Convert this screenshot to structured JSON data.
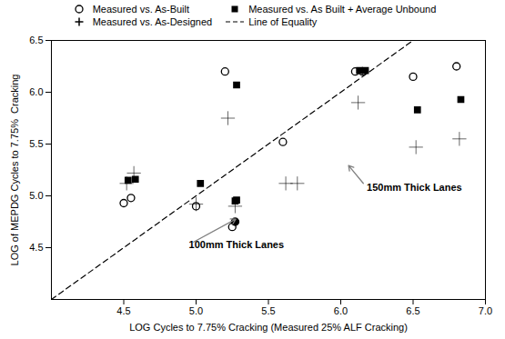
{
  "chart_data": {
    "type": "scatter",
    "xlabel": "LOG Cycles to 7.75% Cracking (Measured 25% ALF Cracking)",
    "ylabel": "LOG of MEPDG Cycles to 7.75%  Cracking",
    "xlim": [
      4.0,
      7.0
    ],
    "ylim": [
      4.0,
      6.5
    ],
    "xticks": [
      4.5,
      {
        "value": 5.0,
        "label": "5.0"
      },
      5.5,
      {
        "value": 6.0,
        "label": "6.0"
      },
      6.5,
      {
        "value": 7.0,
        "label": "7.0"
      }
    ],
    "yticks": [
      4.5,
      {
        "value": 5.0,
        "label": "5.0"
      },
      5.5,
      {
        "value": 6.0,
        "label": "6.0"
      },
      6.5
    ],
    "legend": "top",
    "series": [
      {
        "name": "Measured vs. As-Built",
        "type": "scatter",
        "marker": "open circle",
        "color": "#000000",
        "x": [
          4.5,
          4.55,
          5.0,
          5.2,
          5.25,
          5.6,
          6.1,
          6.15,
          6.5,
          6.8
        ],
        "values": [
          4.93,
          4.98,
          4.9,
          6.2,
          4.7,
          5.52,
          6.2,
          6.2,
          6.15,
          6.25
        ]
      },
      {
        "name": "Measured vs. As Built + Average Unbound",
        "type": "scatter",
        "marker": "filled square",
        "color": "#000000",
        "x": [
          4.53,
          4.58,
          5.03,
          5.28,
          5.28,
          5.27,
          6.13,
          6.17,
          6.53,
          6.83
        ],
        "values": [
          5.15,
          5.16,
          5.12,
          6.07,
          4.96,
          4.95,
          6.21,
          6.21,
          5.83,
          5.93
        ]
      },
      {
        "name": "Measured vs. As-Designed",
        "type": "scatter",
        "marker": "plus",
        "color": "#000000",
        "x": [
          4.52,
          4.57,
          5.0,
          5.22,
          5.27,
          5.62,
          5.7,
          6.12,
          6.52,
          6.82
        ],
        "values": [
          5.12,
          5.22,
          4.92,
          5.75,
          4.9,
          5.12,
          5.12,
          5.9,
          5.47,
          5.55
        ]
      },
      {
        "name": "Line of Equality",
        "type": "line",
        "line_style": "dashed",
        "color": "#000000",
        "x": [
          4.0,
          6.5
        ],
        "values": [
          4.0,
          6.5
        ]
      },
      {
        "type": "scatter",
        "marker": "filled circle",
        "color": "#000000",
        "x": [
          5.27
        ],
        "values": [
          4.75
        ]
      }
    ],
    "annotations": [
      {
        "text": "150mm Thick Lanes",
        "x": 6.18,
        "y": 5.08,
        "xy": [
          6.05,
          5.3
        ]
      },
      {
        "text": "100mm Thick Lanes",
        "x": 4.95,
        "y": 4.53,
        "xy": [
          5.28,
          4.78
        ]
      }
    ]
  }
}
